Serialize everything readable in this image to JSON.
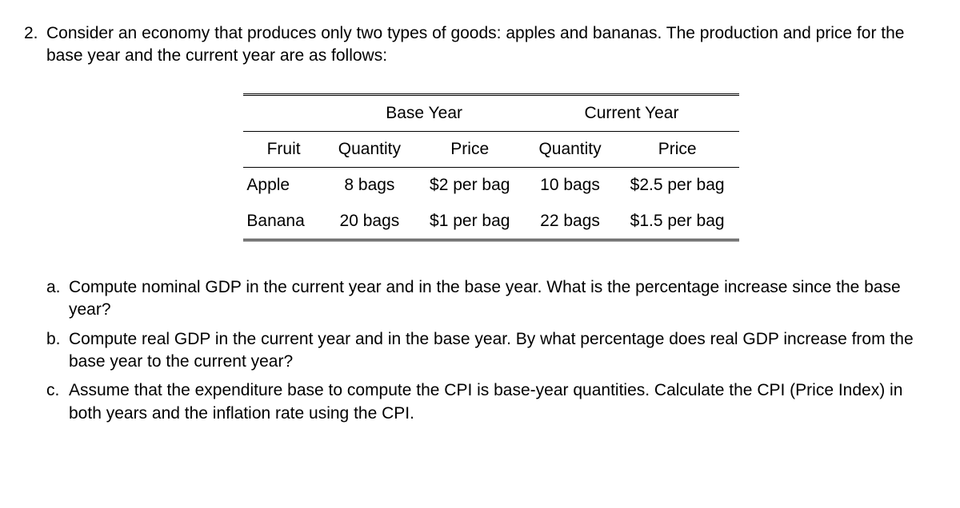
{
  "problem": {
    "number": "2.",
    "intro": "Consider an economy that produces only two types of goods: apples and bananas. The production and price for the base year and the current year are as follows:"
  },
  "table": {
    "group_headers": {
      "base": "Base Year",
      "current": "Current Year"
    },
    "sub_headers": {
      "fruit": "Fruit",
      "qty": "Quantity",
      "price": "Price"
    },
    "rows": [
      {
        "fruit": "Apple",
        "base_qty": "8 bags",
        "base_price": "$2 per bag",
        "cur_qty": "10 bags",
        "cur_price": "$2.5 per bag"
      },
      {
        "fruit": "Banana",
        "base_qty": "20 bags",
        "base_price": "$1 per bag",
        "cur_qty": "22 bags",
        "cur_price": "$1.5 per bag"
      }
    ]
  },
  "subparts": {
    "a": {
      "label": "a.",
      "text": "Compute nominal GDP in the current year and in the base year. What is the percentage increase since the base year?"
    },
    "b": {
      "label": "b.",
      "text": "Compute real GDP in the current year and in the base year. By what percentage does real GDP increase from the base year to the current year?"
    },
    "c": {
      "label": "c.",
      "text": "Assume that the expenditure base to compute the CPI is base-year quantities. Calculate the CPI (Price Index) in both years and the inflation rate using the CPI."
    }
  }
}
